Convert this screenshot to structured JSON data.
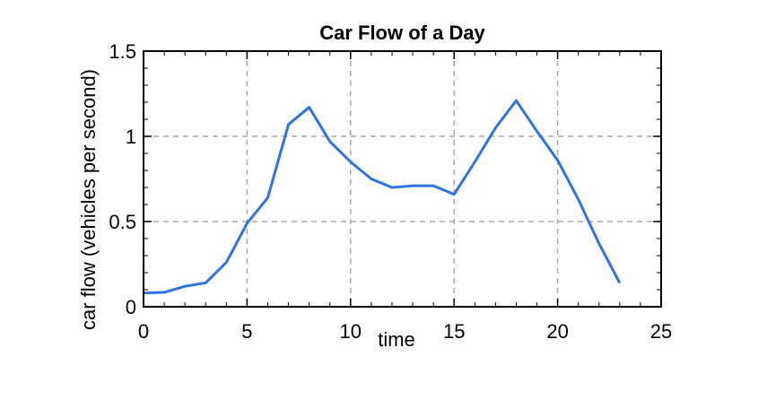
{
  "chart_data": {
    "type": "line",
    "title": "Car Flow of a Day",
    "xlabel": "time",
    "ylabel": "car flow (vehicles per second)",
    "xlim": [
      0,
      25
    ],
    "ylim": [
      0,
      1.5
    ],
    "xticks": [
      0,
      5,
      10,
      15,
      20,
      25
    ],
    "xtick_labels": [
      "0",
      "5",
      "10",
      "15",
      "20",
      "25"
    ],
    "yticks": [
      0,
      0.5,
      1,
      1.5
    ],
    "ytick_labels": [
      "0",
      "0.5",
      "1",
      "1.5"
    ],
    "grid": true,
    "grid_style": "dashed",
    "series": [
      {
        "color": "#2e73e3",
        "x": [
          0,
          1,
          2,
          3,
          4,
          5,
          6,
          7,
          8,
          9,
          10,
          11,
          12,
          13,
          14,
          15,
          16,
          17,
          18,
          19,
          20,
          21,
          22,
          23
        ],
        "y": [
          0.08,
          0.085,
          0.12,
          0.14,
          0.26,
          0.49,
          0.64,
          1.07,
          1.17,
          0.97,
          0.85,
          0.75,
          0.7,
          0.71,
          0.71,
          0.66,
          0.85,
          1.05,
          1.21,
          1.03,
          0.86,
          0.63,
          0.37,
          0.14
        ]
      }
    ]
  }
}
